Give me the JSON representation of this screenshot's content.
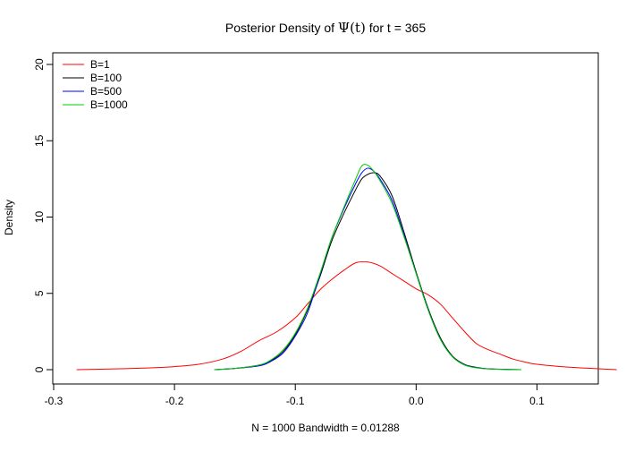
{
  "chart_data": {
    "type": "line",
    "title": {
      "prefix": "Posterior Density of ",
      "symbol": "Ψ(t)",
      "suffix": " for t = 365"
    },
    "xlabel": "N = 1000   Bandwidth = 0.01288",
    "ylabel": "Density",
    "xlim": [
      -0.3,
      0.15
    ],
    "ylim": [
      0,
      20
    ],
    "xticks": [
      -0.3,
      -0.2,
      -0.1,
      0.0,
      0.1
    ],
    "xtick_labels": [
      "-0.3",
      "-0.2",
      "-0.1",
      "0.0",
      "0.1"
    ],
    "yticks": [
      0,
      5,
      10,
      15,
      20
    ],
    "ytick_labels": [
      "0",
      "5",
      "10",
      "15",
      "20"
    ],
    "grid": false,
    "legend_position": "top-left",
    "series": [
      {
        "name": "B=1",
        "color": "#ff0000",
        "x": [
          -0.281,
          -0.25,
          -0.22,
          -0.2,
          -0.18,
          -0.16,
          -0.145,
          -0.13,
          -0.115,
          -0.1,
          -0.09,
          -0.08,
          -0.07,
          -0.06,
          -0.05,
          -0.04,
          -0.03,
          -0.02,
          -0.01,
          0.0,
          0.01,
          0.02,
          0.03,
          0.04,
          0.05,
          0.06,
          0.07,
          0.08,
          0.09,
          0.1,
          0.12,
          0.14,
          0.166
        ],
        "y": [
          0.0,
          0.05,
          0.12,
          0.2,
          0.35,
          0.7,
          1.2,
          1.9,
          2.5,
          3.4,
          4.3,
          5.2,
          5.9,
          6.5,
          7.0,
          7.05,
          6.8,
          6.3,
          5.8,
          5.3,
          4.9,
          4.3,
          3.4,
          2.5,
          1.7,
          1.3,
          1.0,
          0.7,
          0.5,
          0.35,
          0.2,
          0.1,
          0.0
        ]
      },
      {
        "name": "B=100",
        "color": "#000000",
        "x": [
          -0.167,
          -0.15,
          -0.13,
          -0.12,
          -0.11,
          -0.1,
          -0.09,
          -0.08,
          -0.07,
          -0.06,
          -0.05,
          -0.045,
          -0.04,
          -0.035,
          -0.03,
          -0.02,
          -0.01,
          0.0,
          0.01,
          0.02,
          0.03,
          0.04,
          0.05,
          0.06,
          0.07,
          0.087
        ],
        "y": [
          0.0,
          0.08,
          0.3,
          0.6,
          1.2,
          2.3,
          3.9,
          6.0,
          8.4,
          10.2,
          11.8,
          12.5,
          12.8,
          12.9,
          12.7,
          11.4,
          9.0,
          6.4,
          4.0,
          2.1,
          0.9,
          0.35,
          0.15,
          0.06,
          0.03,
          0.0
        ]
      },
      {
        "name": "B=500",
        "color": "#0000ff",
        "x": [
          -0.167,
          -0.15,
          -0.13,
          -0.12,
          -0.11,
          -0.1,
          -0.09,
          -0.08,
          -0.07,
          -0.06,
          -0.05,
          -0.045,
          -0.04,
          -0.035,
          -0.03,
          -0.02,
          -0.01,
          0.0,
          0.01,
          0.02,
          0.03,
          0.04,
          0.05,
          0.06,
          0.07,
          0.087
        ],
        "y": [
          0.0,
          0.08,
          0.25,
          0.55,
          1.1,
          2.2,
          3.7,
          6.1,
          8.6,
          10.5,
          12.2,
          12.9,
          13.2,
          13.0,
          12.5,
          11.1,
          8.8,
          6.3,
          3.9,
          2.0,
          0.85,
          0.32,
          0.13,
          0.05,
          0.02,
          0.0
        ]
      },
      {
        "name": "B=1000",
        "color": "#00cc00",
        "x": [
          -0.167,
          -0.15,
          -0.13,
          -0.12,
          -0.11,
          -0.1,
          -0.09,
          -0.08,
          -0.07,
          -0.06,
          -0.05,
          -0.045,
          -0.04,
          -0.035,
          -0.03,
          -0.02,
          -0.01,
          0.0,
          0.01,
          0.02,
          0.03,
          0.04,
          0.05,
          0.06,
          0.07,
          0.087
        ],
        "y": [
          0.0,
          0.08,
          0.3,
          0.65,
          1.3,
          2.4,
          4.0,
          6.2,
          8.6,
          10.6,
          12.5,
          13.35,
          13.4,
          13.0,
          12.4,
          10.9,
          8.7,
          6.3,
          3.9,
          2.0,
          0.85,
          0.3,
          0.12,
          0.05,
          0.02,
          0.0
        ]
      }
    ]
  }
}
